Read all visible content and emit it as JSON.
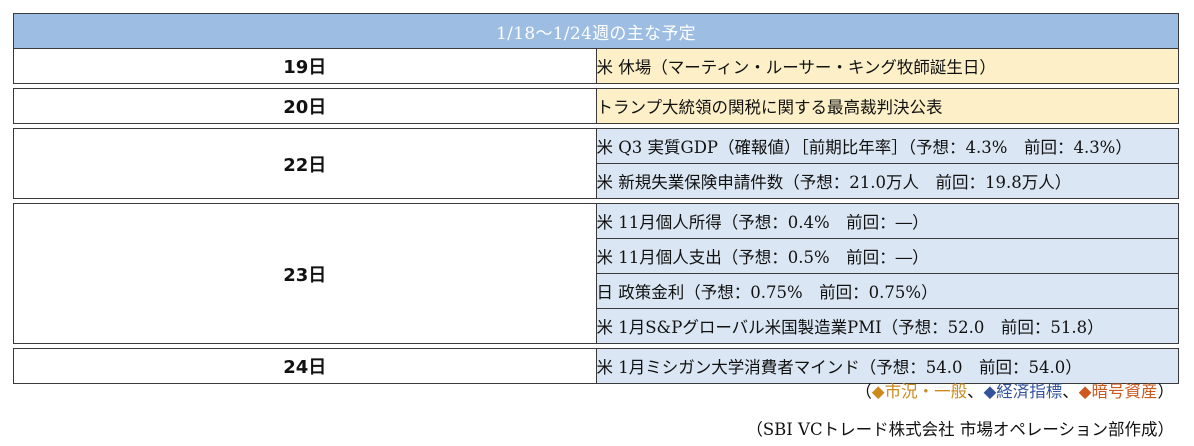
{
  "table": {
    "title": "1/18〜1/24週の主な予定",
    "colors": {
      "header": "#9dbde3",
      "market_general_row": "#fdf0c8",
      "economic_row": "#dae6f3"
    },
    "days": [
      {
        "day": "19日",
        "category": "market_general",
        "events": [
          "米 休場（マーティン・ルーサー・キング牧師誕生日）"
        ]
      },
      {
        "day": "20日",
        "category": "market_general",
        "events": [
          "トランプ大統領の関税に関する最高裁判決公表"
        ]
      },
      {
        "day": "22日",
        "category": "economic",
        "events": [
          "米 Q3 実質GDP（確報値）［前期比年率］（予想：4.3%　前回：4.3%）",
          "米 新規失業保険申請件数（予想：21.0万人　前回：19.8万人）"
        ]
      },
      {
        "day": "23日",
        "category": "economic",
        "events": [
          "米 11月個人所得（予想：0.4%　前回：―）",
          "米 11月個人支出（予想：0.5%　前回：―）",
          "日 政策金利（予想：0.75%　前回：0.75%）",
          "米 1月S&Pグローバル米国製造業PMI（予想：52.0　前回：51.8）"
        ]
      },
      {
        "day": "24日",
        "category": "economic",
        "events": [
          "米 1月ミシガン大学消費者マインド（予想：54.0　前回：54.0）"
        ]
      }
    ]
  },
  "legend": {
    "open": "（",
    "close": "）",
    "separator": "、",
    "items": [
      {
        "marker": "◆",
        "label": "市況・一般",
        "color": "#cc8a1c"
      },
      {
        "marker": "◆",
        "label": "経済指標",
        "color": "#33549c"
      },
      {
        "marker": "◆",
        "label": "暗号資産",
        "color": "#cc5a20"
      }
    ]
  },
  "source": "（SBI VCトレード株式会社 市場オペレーション部作成）"
}
